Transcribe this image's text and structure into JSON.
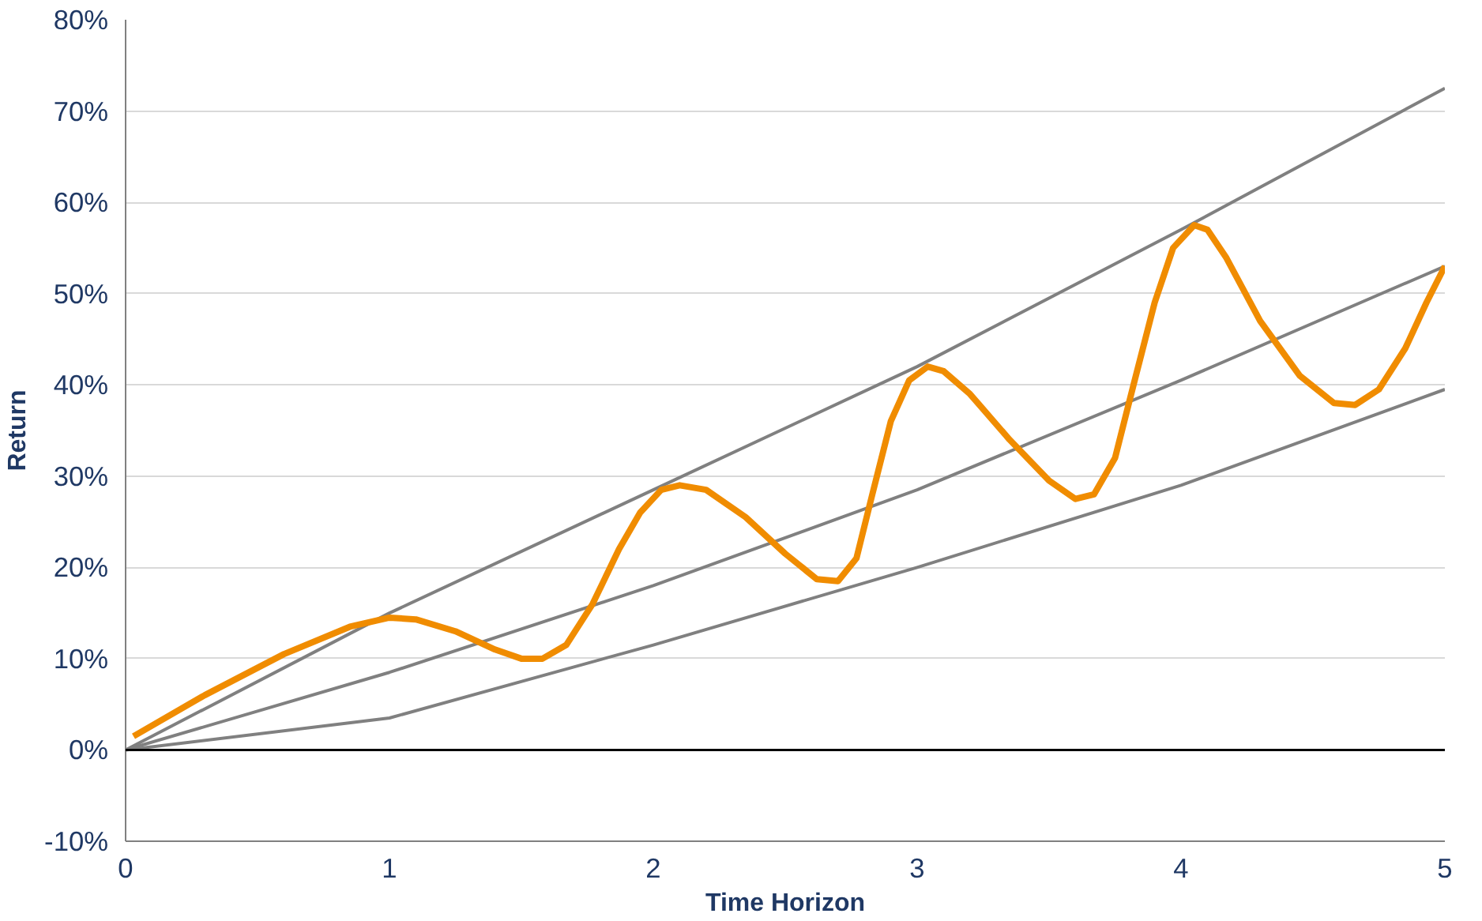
{
  "chart_data": {
    "type": "line",
    "xlabel": "Time Horizon",
    "ylabel": "Return",
    "xlim": [
      0,
      5
    ],
    "xticks": [
      0,
      1,
      2,
      3,
      4,
      5
    ],
    "ylim": [
      -10,
      80
    ],
    "yticks": [
      {
        "value": -10,
        "label": "-10%"
      },
      {
        "value": 0,
        "label": "0%"
      },
      {
        "value": 10,
        "label": "10%"
      },
      {
        "value": 20,
        "label": "20%"
      },
      {
        "value": 30,
        "label": "30%"
      },
      {
        "value": 40,
        "label": "40%"
      },
      {
        "value": 50,
        "label": "50%"
      },
      {
        "value": 60,
        "label": "60%"
      },
      {
        "value": 70,
        "label": "70%"
      },
      {
        "value": 80,
        "label": "80%"
      }
    ],
    "grid": "y",
    "ref_lines": [
      {
        "axis": "y",
        "value": 0,
        "color": "#000000"
      }
    ],
    "series": [
      {
        "color": "#808080",
        "x": [
          0,
          1,
          2,
          3,
          4,
          5
        ],
        "values": [
          0,
          15,
          28.5,
          42,
          57,
          72.5
        ]
      },
      {
        "color": "#808080",
        "x": [
          0,
          1,
          2,
          3,
          4,
          5
        ],
        "values": [
          0,
          8.5,
          18,
          28.5,
          40.5,
          53
        ]
      },
      {
        "color": "#808080",
        "x": [
          0,
          1,
          2,
          3,
          4,
          5
        ],
        "values": [
          0,
          3.5,
          11.5,
          20,
          29,
          39.5
        ]
      },
      {
        "color": "#f08c00",
        "x": [
          0.03,
          0.3,
          0.6,
          0.85,
          1.0,
          1.1,
          1.25,
          1.4,
          1.5,
          1.58,
          1.67,
          1.77,
          1.87,
          1.95,
          2.03,
          2.1,
          2.2,
          2.35,
          2.5,
          2.62,
          2.7,
          2.77,
          2.83,
          2.9,
          2.97,
          3.04,
          3.1,
          3.2,
          3.35,
          3.5,
          3.6,
          3.67,
          3.75,
          3.82,
          3.9,
          3.97,
          4.05,
          4.1,
          4.17,
          4.3,
          4.45,
          4.58,
          4.66,
          4.75,
          4.85,
          4.93,
          5.0
        ],
        "values": [
          1.5,
          6,
          10.5,
          13.5,
          14.5,
          14.3,
          13,
          11,
          10,
          10,
          11.5,
          16,
          22,
          26,
          28.5,
          29,
          28.5,
          25.5,
          21.5,
          18.7,
          18.5,
          21,
          28,
          36,
          40.5,
          42,
          41.5,
          39,
          34,
          29.5,
          27.5,
          28,
          32,
          40,
          49,
          55,
          57.5,
          57,
          54,
          47,
          41,
          38,
          37.8,
          39.5,
          44,
          49,
          53
        ]
      }
    ]
  }
}
